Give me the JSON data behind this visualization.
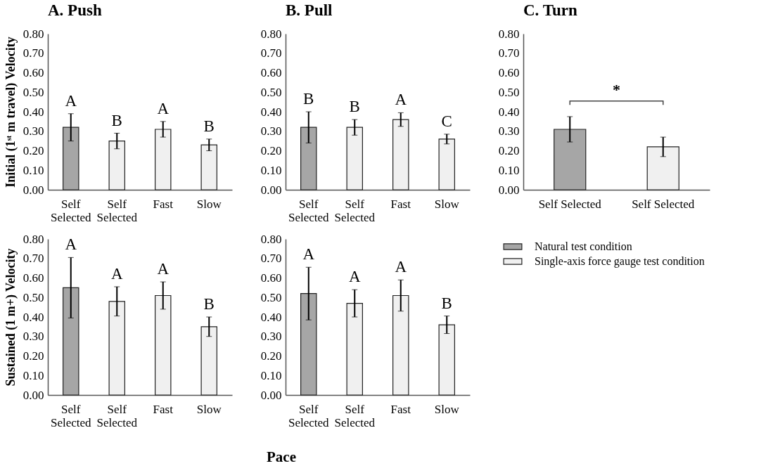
{
  "chart_data": [
    {
      "type": "bar",
      "title": "A. Push",
      "ylabel": "Initial (1ˢᵗ m travel) Velocity",
      "categories": [
        "Self Selected",
        "Self Selected",
        "Fast",
        "Slow"
      ],
      "values": [
        0.32,
        0.25,
        0.31,
        0.23
      ],
      "errors": [
        0.07,
        0.04,
        0.04,
        0.03
      ],
      "colors": [
        "#a6a6a6",
        "#f0f0f0",
        "#f0f0f0",
        "#f0f0f0"
      ],
      "ylim": [
        0,
        0.8
      ],
      "yticks": [
        {
          "value": 0,
          "label": "0.00"
        },
        {
          "value": 0.1,
          "label": "0.10"
        },
        {
          "value": 0.2,
          "label": "0.20"
        },
        {
          "value": 0.3,
          "label": "0.30"
        },
        {
          "value": 0.4,
          "label": "0.40"
        },
        {
          "value": 0.5,
          "label": "0.50"
        },
        {
          "value": 0.6,
          "label": "0.60"
        },
        {
          "value": 0.7,
          "label": "0.70"
        },
        {
          "value": 0.8,
          "label": "0.80"
        }
      ],
      "annotations": [
        {
          "text": "A",
          "x": "Self Selected",
          "y": 0.39
        },
        {
          "text": "B",
          "x": "Self Selected",
          "y": 0.29
        },
        {
          "text": "A",
          "x": "Fast",
          "y": 0.35
        },
        {
          "text": "B",
          "x": "Slow",
          "y": 0.26
        }
      ]
    },
    {
      "type": "bar",
      "title": "B. Pull",
      "categories": [
        "Self Selected",
        "Self Selected",
        "Fast",
        "Slow"
      ],
      "values": [
        0.32,
        0.32,
        0.36,
        0.26
      ],
      "errors": [
        0.08,
        0.04,
        0.035,
        0.025
      ],
      "colors": [
        "#a6a6a6",
        "#f0f0f0",
        "#f0f0f0",
        "#f0f0f0"
      ],
      "ylim": [
        0,
        0.8
      ],
      "yticks": [
        {
          "value": 0,
          "label": "0.00"
        },
        {
          "value": 0.1,
          "label": "0.10"
        },
        {
          "value": 0.2,
          "label": "0.20"
        },
        {
          "value": 0.3,
          "label": "0.30"
        },
        {
          "value": 0.4,
          "label": "0.40"
        },
        {
          "value": 0.5,
          "label": "0.50"
        },
        {
          "value": 0.6,
          "label": "0.60"
        },
        {
          "value": 0.7,
          "label": "0.70"
        },
        {
          "value": 0.8,
          "label": "0.80"
        }
      ],
      "annotations": [
        {
          "text": "B",
          "x": "Self Selected",
          "y": 0.4
        },
        {
          "text": "B",
          "x": "Self Selected",
          "y": 0.36
        },
        {
          "text": "A",
          "x": "Fast",
          "y": 0.395
        },
        {
          "text": "C",
          "x": "Slow",
          "y": 0.285
        }
      ]
    },
    {
      "type": "bar",
      "title": "C. Turn",
      "categories": [
        "Self Selected",
        "Self Selected"
      ],
      "values": [
        0.31,
        0.22
      ],
      "errors": [
        0.065,
        0.05
      ],
      "colors": [
        "#a6a6a6",
        "#f0f0f0"
      ],
      "ylim": [
        0,
        0.8
      ],
      "yticks": [
        {
          "value": 0,
          "label": "0.00"
        },
        {
          "value": 0.1,
          "label": "0.10"
        },
        {
          "value": 0.2,
          "label": "0.20"
        },
        {
          "value": 0.3,
          "label": "0.30"
        },
        {
          "value": 0.4,
          "label": "0.40"
        },
        {
          "value": 0.5,
          "label": "0.50"
        },
        {
          "value": 0.6,
          "label": "0.60"
        },
        {
          "value": 0.7,
          "label": "0.70"
        },
        {
          "value": 0.8,
          "label": "0.80"
        }
      ],
      "annotations": [
        "*"
      ]
    },
    {
      "type": "bar",
      "ylabel": "Sustained (1 m+) Velocity",
      "xlabel": "Pace",
      "categories": [
        "Self Selected",
        "Self Selected",
        "Fast",
        "Slow"
      ],
      "values": [
        0.55,
        0.48,
        0.51,
        0.35
      ],
      "errors": [
        0.155,
        0.075,
        0.07,
        0.05
      ],
      "colors": [
        "#a6a6a6",
        "#f0f0f0",
        "#f0f0f0",
        "#f0f0f0"
      ],
      "ylim": [
        0,
        0.8
      ],
      "yticks": [
        {
          "value": 0,
          "label": "0.00"
        },
        {
          "value": 0.1,
          "label": "0.10"
        },
        {
          "value": 0.2,
          "label": "0.20"
        },
        {
          "value": 0.3,
          "label": "0.30"
        },
        {
          "value": 0.4,
          "label": "0.40"
        },
        {
          "value": 0.5,
          "label": "0.50"
        },
        {
          "value": 0.6,
          "label": "0.60"
        },
        {
          "value": 0.7,
          "label": "0.70"
        },
        {
          "value": 0.8,
          "label": "0.80"
        }
      ],
      "annotations": [
        {
          "text": "A",
          "x": "Self Selected",
          "y": 0.705
        },
        {
          "text": "A",
          "x": "Self Selected",
          "y": 0.555
        },
        {
          "text": "A",
          "x": "Fast",
          "y": 0.58
        },
        {
          "text": "B",
          "x": "Slow",
          "y": 0.4
        }
      ]
    },
    {
      "type": "bar",
      "categories": [
        "Self Selected",
        "Self Selected",
        "Fast",
        "Slow"
      ],
      "series": [
        {
          "name": "Natural test condition",
          "color": "#a6a6a6",
          "values": [
            0.52,
            null,
            null,
            null
          ],
          "errors": [
            0.135,
            null,
            null,
            null
          ]
        },
        {
          "name": "Single-axis force gauge test condition",
          "color": "#f0f0f0",
          "values": [
            null,
            0.47,
            0.51,
            0.36
          ],
          "errors": [
            null,
            0.07,
            0.08,
            0.045
          ]
        }
      ],
      "ylim": [
        0,
        0.8
      ],
      "yticks": [
        {
          "value": 0,
          "label": "0.00"
        },
        {
          "value": 0.1,
          "label": "0.10"
        },
        {
          "value": 0.2,
          "label": "0.20"
        },
        {
          "value": 0.3,
          "label": "0.30"
        },
        {
          "value": 0.4,
          "label": "0.40"
        },
        {
          "value": 0.5,
          "label": "0.50"
        },
        {
          "value": 0.6,
          "label": "0.60"
        },
        {
          "value": 0.7,
          "label": "0.70"
        },
        {
          "value": 0.8,
          "label": "0.80"
        }
      ],
      "annotations": [
        {
          "text": "A",
          "x": "Self Selected",
          "y": 0.655
        },
        {
          "text": "A",
          "x": "Self Selected",
          "y": 0.54
        },
        {
          "text": "A",
          "x": "Fast",
          "y": 0.59
        },
        {
          "text": "B",
          "x": "Slow",
          "y": 0.405
        }
      ],
      "legend": "right"
    }
  ]
}
